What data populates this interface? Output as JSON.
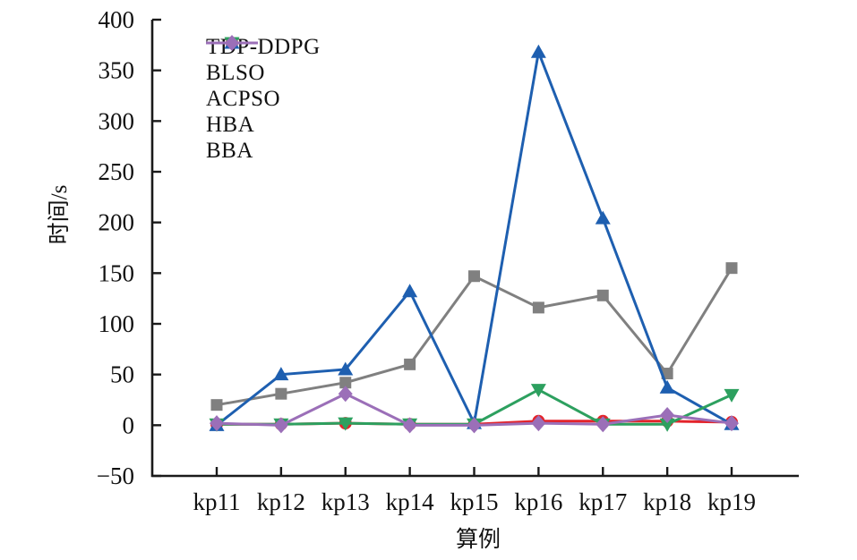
{
  "chart_data": {
    "type": "line",
    "xlabel": "算例",
    "ylabel": "时间/s",
    "categories": [
      "kp11",
      "kp12",
      "kp13",
      "kp14",
      "kp15",
      "kp16",
      "kp17",
      "kp18",
      "kp19"
    ],
    "ylim": [
      -50,
      400
    ],
    "y_ticks": [
      400,
      350,
      300,
      250,
      200,
      150,
      100,
      50,
      0,
      -50
    ],
    "grid": false,
    "legend_position": "top-left-inside",
    "axis_color": "#1a1a1a",
    "series": [
      {
        "name": "TDP-DDPG",
        "color": "#808080",
        "marker": "square",
        "values": [
          20,
          31,
          42,
          60,
          147,
          116,
          128,
          51,
          155
        ]
      },
      {
        "name": "BLSO",
        "color": "#e3242b",
        "marker": "circle",
        "values": [
          1,
          1,
          2,
          1,
          1,
          4,
          4,
          4,
          3
        ]
      },
      {
        "name": "ACPSO",
        "color": "#1e5fb0",
        "marker": "triangle-up",
        "values": [
          0,
          50,
          55,
          132,
          2,
          368,
          204,
          37,
          1
        ]
      },
      {
        "name": "HBA",
        "color": "#2da05f",
        "marker": "triangle-down",
        "values": [
          1,
          1,
          2,
          1,
          1,
          35,
          1,
          1,
          30
        ]
      },
      {
        "name": "BBA",
        "color": "#9b6fb8",
        "marker": "diamond",
        "values": [
          2,
          0,
          31,
          0,
          0,
          2,
          1,
          10,
          2
        ]
      }
    ]
  }
}
